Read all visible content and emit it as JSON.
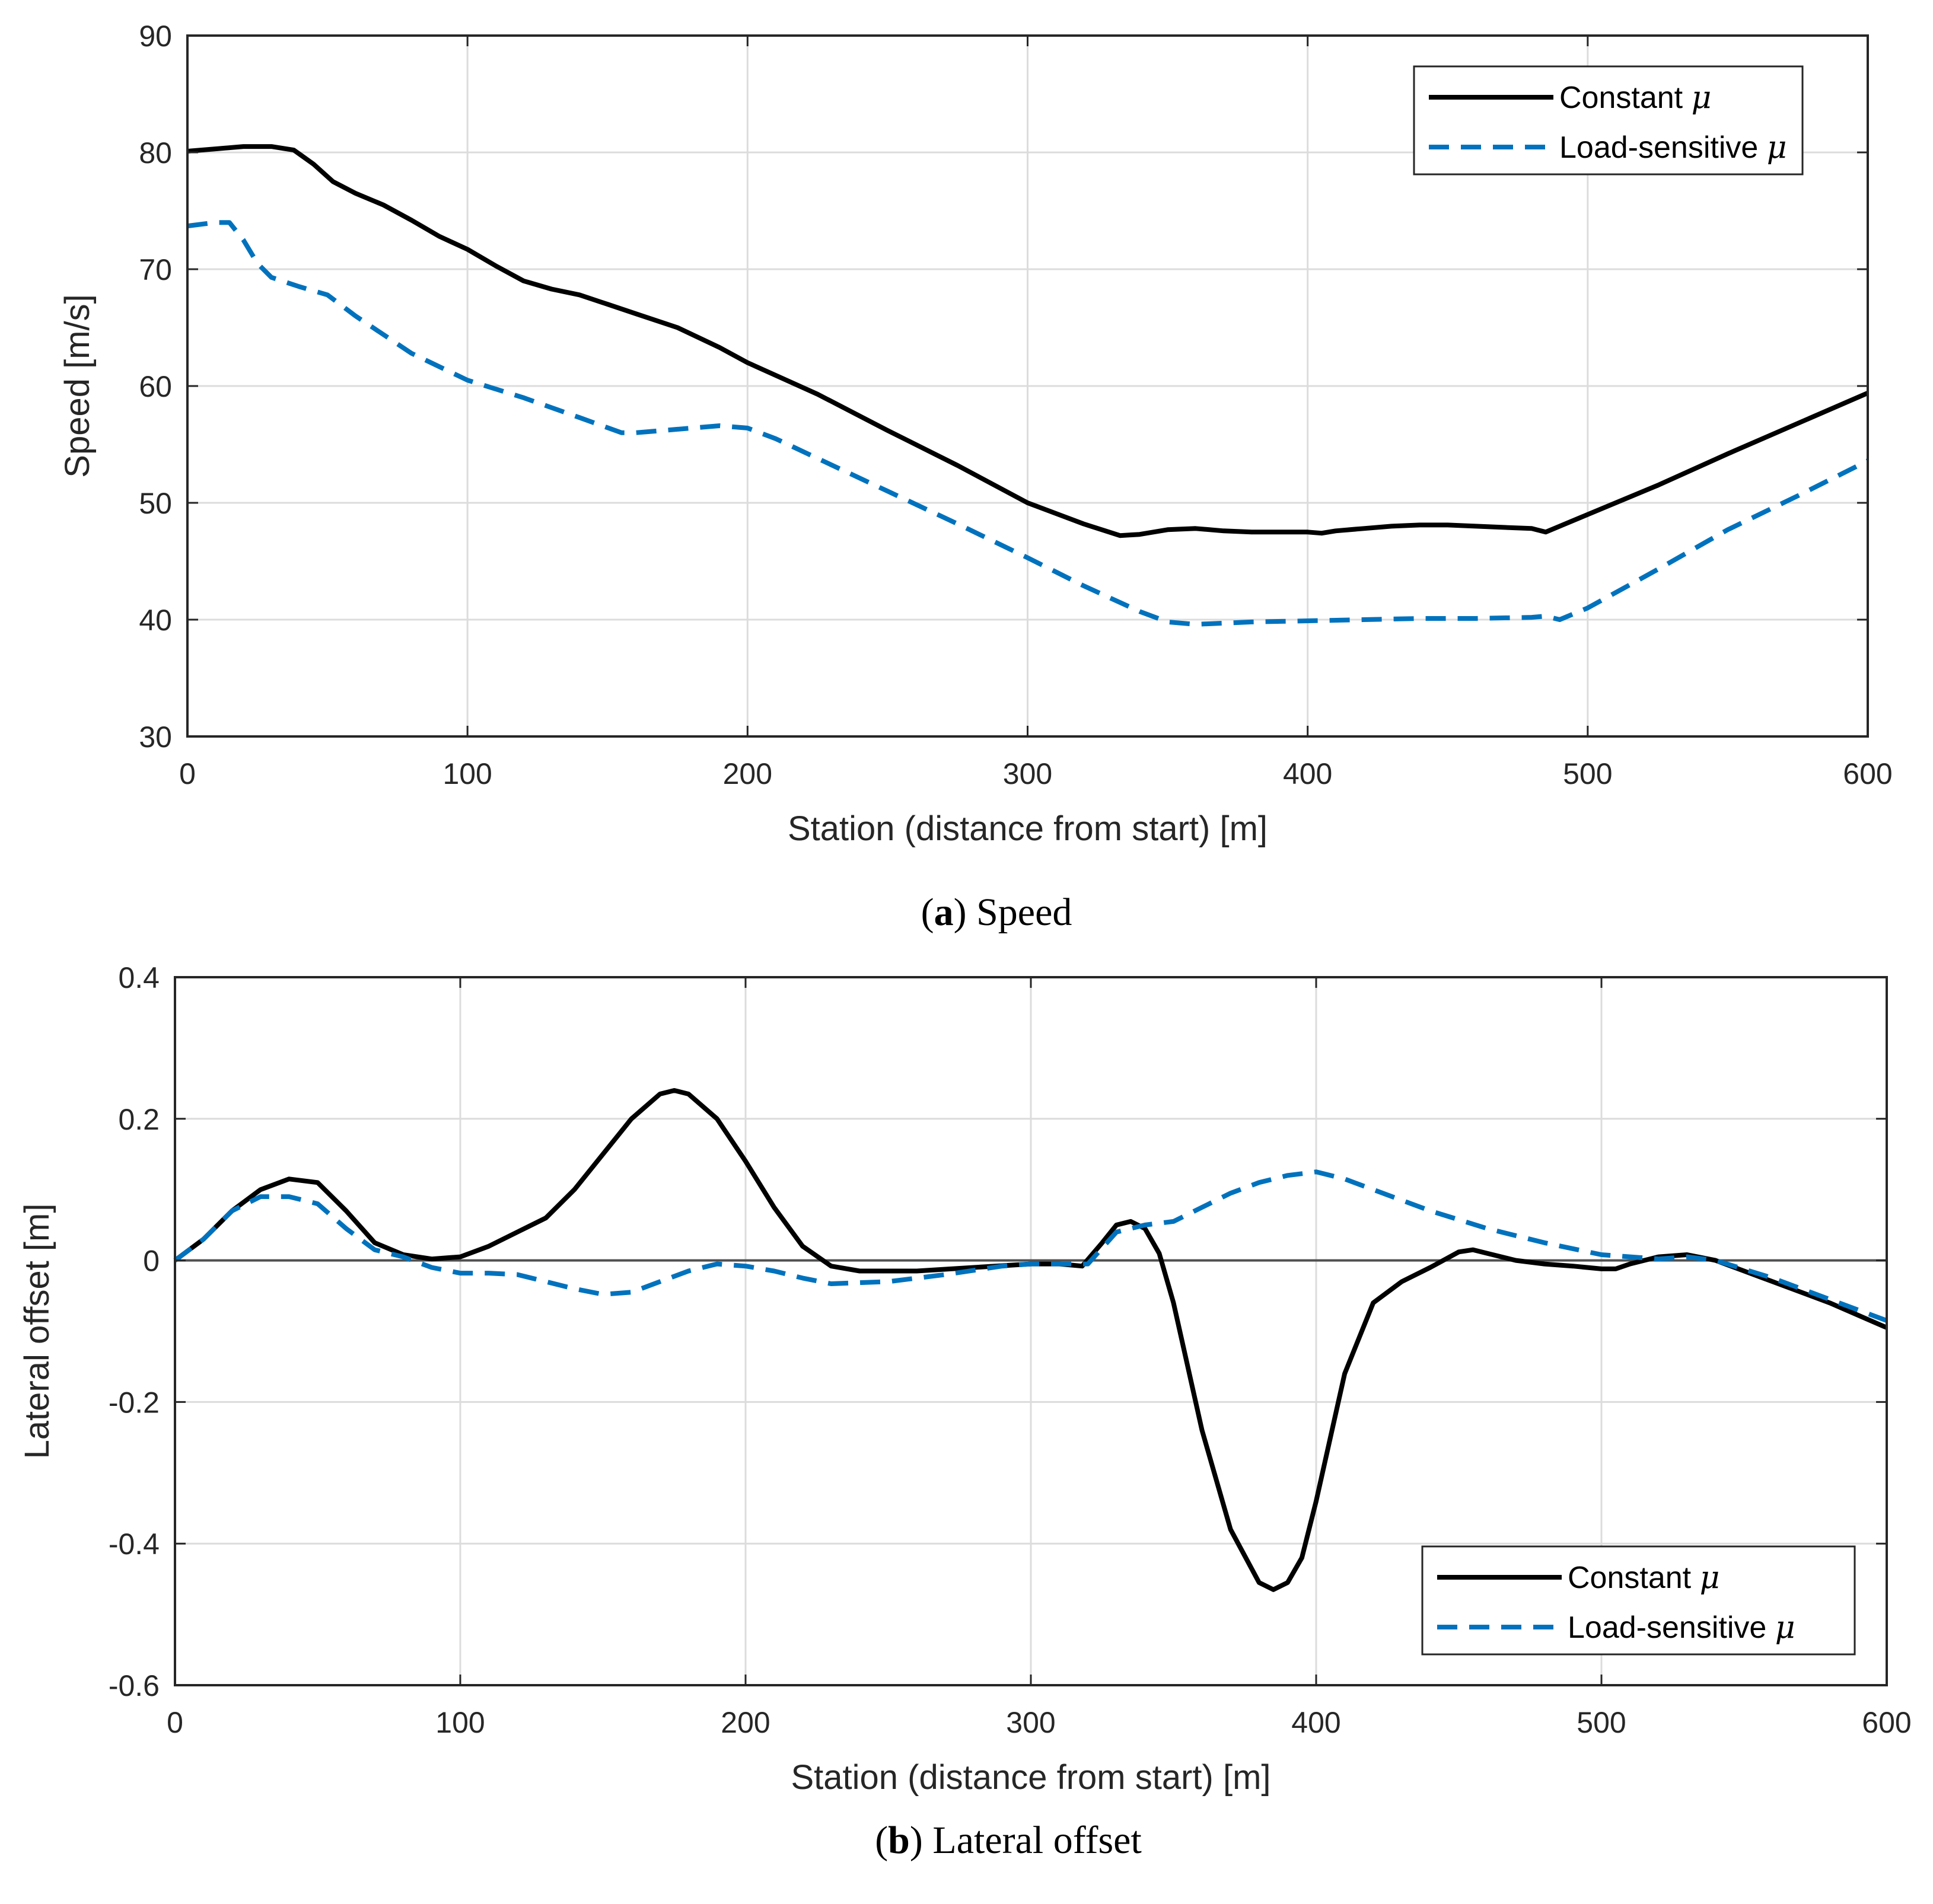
{
  "colors": {
    "constant": "#000000",
    "load_sensitive": "#0072BD",
    "zero_line": "#505050"
  },
  "chart_data": [
    {
      "type": "line",
      "caption": {
        "letter": "a",
        "text": "Speed"
      },
      "xlabel": "Station (distance from start) [m]",
      "ylabel": "Speed [m/s]",
      "xlim": [
        0,
        600
      ],
      "ylim": [
        30,
        90
      ],
      "xticks": [
        0,
        100,
        200,
        300,
        400,
        500,
        600
      ],
      "yticks": [
        30,
        40,
        50,
        60,
        70,
        80,
        90
      ],
      "grid": true,
      "legend_position": "top-right",
      "series": [
        {
          "name": "Constant",
          "symbol": "μ",
          "style": "solid",
          "x": [
            0,
            10,
            20,
            30,
            38,
            45,
            52,
            60,
            70,
            80,
            90,
            100,
            110,
            120,
            130,
            140,
            150,
            160,
            175,
            190,
            200,
            225,
            250,
            275,
            300,
            320,
            333,
            340,
            350,
            360,
            370,
            380,
            390,
            400,
            405,
            410,
            420,
            430,
            440,
            450,
            460,
            470,
            480,
            485,
            490,
            500,
            525,
            550,
            575,
            600
          ],
          "y": [
            80.1,
            80.3,
            80.5,
            80.5,
            80.2,
            79,
            77.5,
            76.5,
            75.5,
            74.2,
            72.8,
            71.7,
            70.3,
            69,
            68.3,
            67.8,
            67,
            66.2,
            65,
            63.3,
            62,
            59.3,
            56.2,
            53.2,
            50,
            48.2,
            47.2,
            47.3,
            47.7,
            47.8,
            47.6,
            47.5,
            47.5,
            47.5,
            47.4,
            47.6,
            47.8,
            48,
            48.1,
            48.1,
            48,
            47.9,
            47.8,
            47.5,
            48,
            49,
            51.5,
            54.2,
            56.8,
            59.4
          ]
        },
        {
          "name": "Load-sensitive",
          "symbol": "μ",
          "style": "dashed",
          "x": [
            0,
            10,
            15,
            20,
            25,
            30,
            40,
            50,
            60,
            80,
            100,
            120,
            140,
            155,
            160,
            175,
            190,
            200,
            210,
            225,
            250,
            275,
            300,
            320,
            340,
            350,
            360,
            370,
            380,
            400,
            420,
            440,
            460,
            480,
            485,
            490,
            500,
            525,
            550,
            575,
            600
          ],
          "y": [
            73.7,
            74,
            74,
            72.5,
            70.5,
            69.3,
            68.5,
            67.8,
            66,
            62.8,
            60.5,
            59,
            57.3,
            56,
            56,
            56.3,
            56.6,
            56.4,
            55.5,
            53.8,
            51,
            48.2,
            45.3,
            42.9,
            40.7,
            39.8,
            39.6,
            39.7,
            39.8,
            39.9,
            40,
            40.1,
            40.1,
            40.2,
            40.3,
            40,
            41,
            44.3,
            47.7,
            50.6,
            53.6
          ]
        }
      ]
    },
    {
      "type": "line",
      "caption": {
        "letter": "b",
        "text": "Lateral offset"
      },
      "xlabel": "Station (distance from start) [m]",
      "ylabel": "Lateral offset [m]",
      "xlim": [
        0,
        600
      ],
      "ylim": [
        -0.6,
        0.4
      ],
      "xticks": [
        0,
        100,
        200,
        300,
        400,
        500,
        600
      ],
      "yticks": [
        -0.6,
        -0.4,
        -0.2,
        0,
        0.2,
        0.4
      ],
      "ytick_labels": [
        "-0.6",
        "-0.4",
        "-0.2",
        "0",
        "0.2",
        "0.4"
      ],
      "grid": true,
      "zero_line": true,
      "legend_position": "bottom-right",
      "series": [
        {
          "name": "Constant",
          "symbol": "μ",
          "style": "solid",
          "x": [
            0,
            10,
            20,
            30,
            40,
            50,
            60,
            70,
            80,
            90,
            100,
            110,
            120,
            130,
            140,
            150,
            160,
            170,
            175,
            180,
            190,
            200,
            210,
            220,
            230,
            240,
            260,
            280,
            300,
            310,
            318,
            325,
            330,
            335,
            340,
            345,
            350,
            360,
            370,
            380,
            385,
            390,
            395,
            400,
            410,
            420,
            430,
            440,
            450,
            455,
            460,
            470,
            480,
            490,
            500,
            505,
            510,
            520,
            530,
            540,
            560,
            580,
            600
          ],
          "y": [
            0,
            0.03,
            0.07,
            0.1,
            0.115,
            0.11,
            0.07,
            0.025,
            0.008,
            0.002,
            0.005,
            0.02,
            0.04,
            0.06,
            0.1,
            0.15,
            0.2,
            0.235,
            0.24,
            0.235,
            0.2,
            0.14,
            0.075,
            0.02,
            -0.008,
            -0.015,
            -0.015,
            -0.01,
            -0.005,
            -0.005,
            -0.008,
            0.025,
            0.05,
            0.055,
            0.045,
            0.01,
            -0.06,
            -0.24,
            -0.38,
            -0.455,
            -0.465,
            -0.455,
            -0.42,
            -0.34,
            -0.16,
            -0.06,
            -0.03,
            -0.01,
            0.012,
            0.015,
            0.01,
            0,
            -0.005,
            -0.008,
            -0.012,
            -0.012,
            -0.005,
            0.005,
            0.008,
            0,
            -0.03,
            -0.06,
            -0.095
          ]
        },
        {
          "name": "Load-sensitive",
          "symbol": "μ",
          "style": "dashed",
          "x": [
            0,
            10,
            20,
            30,
            40,
            50,
            60,
            70,
            80,
            90,
            100,
            110,
            120,
            130,
            140,
            150,
            160,
            170,
            180,
            190,
            200,
            210,
            220,
            230,
            250,
            270,
            290,
            300,
            310,
            320,
            330,
            340,
            350,
            360,
            370,
            380,
            390,
            400,
            410,
            420,
            440,
            460,
            480,
            500,
            520,
            530,
            540,
            560,
            580,
            600
          ],
          "y": [
            0,
            0.03,
            0.07,
            0.09,
            0.09,
            0.08,
            0.045,
            0.015,
            0.005,
            -0.01,
            -0.018,
            -0.018,
            -0.02,
            -0.03,
            -0.04,
            -0.048,
            -0.045,
            -0.03,
            -0.015,
            -0.005,
            -0.008,
            -0.015,
            -0.025,
            -0.033,
            -0.03,
            -0.02,
            -0.008,
            -0.005,
            -0.005,
            -0.005,
            0.04,
            0.05,
            0.055,
            0.075,
            0.095,
            0.11,
            0.12,
            0.125,
            0.115,
            0.1,
            0.07,
            0.045,
            0.025,
            0.008,
            0.002,
            0.005,
            0,
            -0.025,
            -0.055,
            -0.085
          ]
        }
      ]
    }
  ]
}
